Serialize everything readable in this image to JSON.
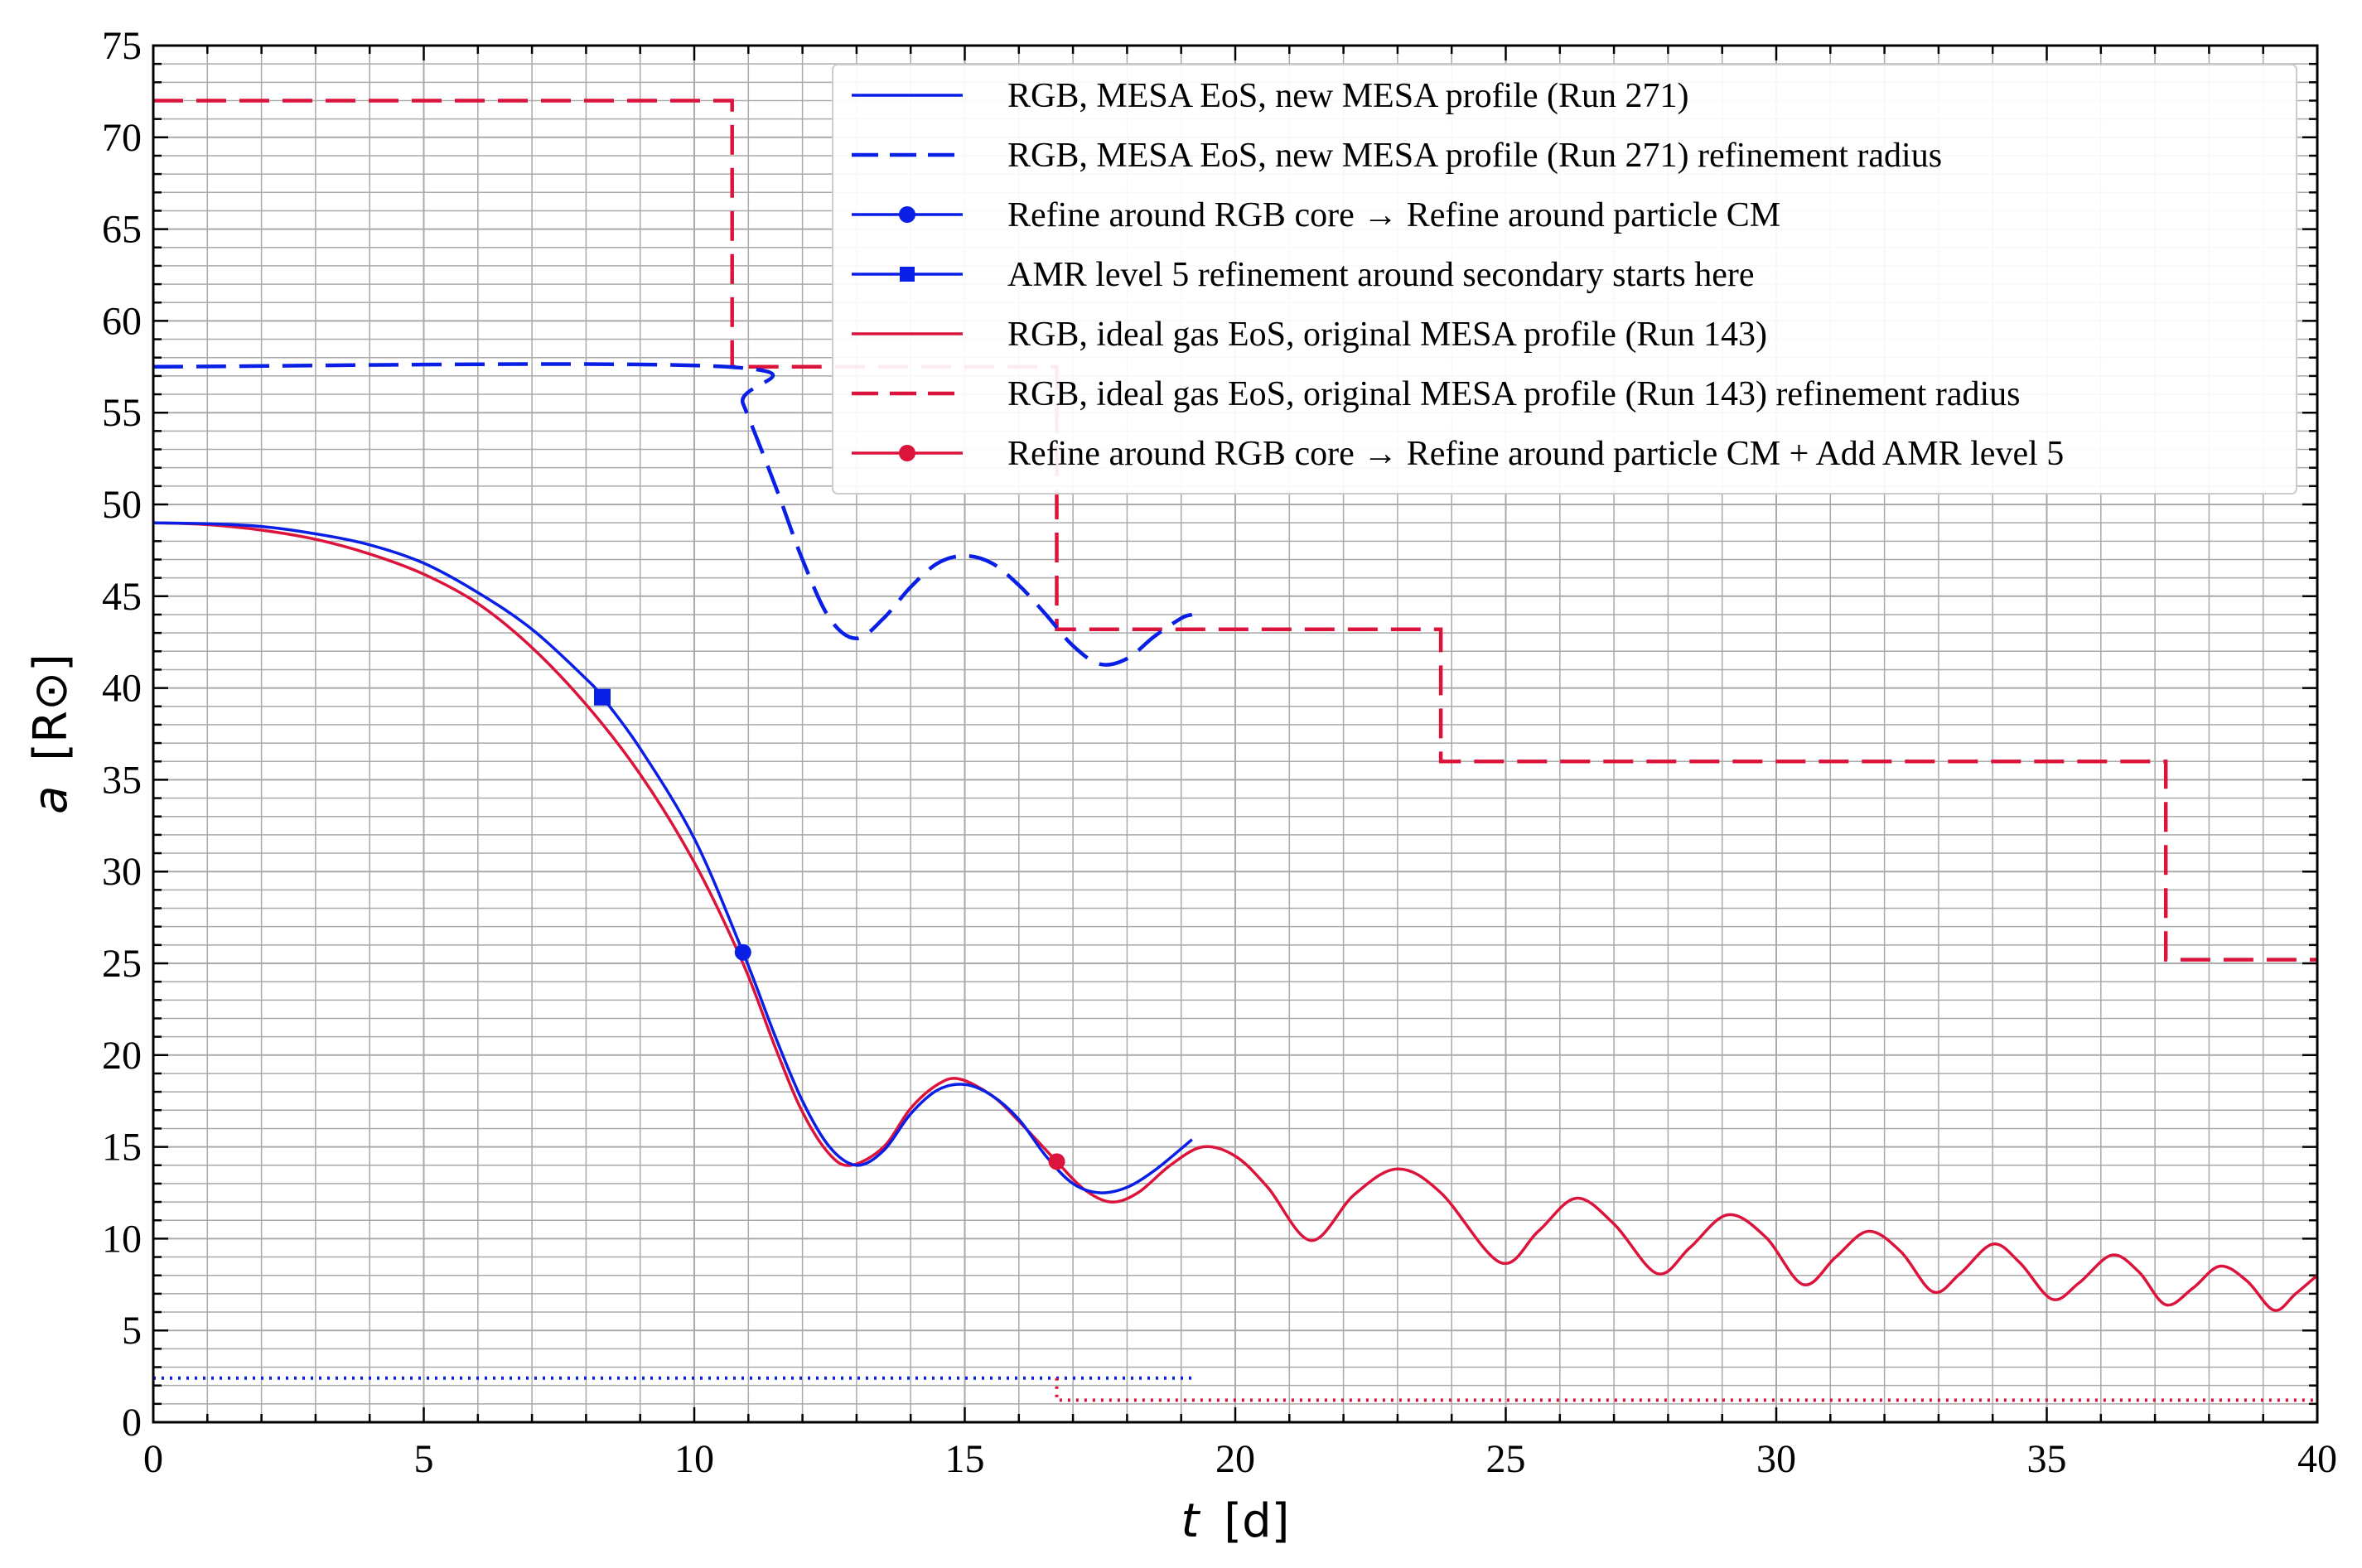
{
  "chart_data": {
    "type": "line",
    "title": "",
    "xlabel": "t [d]",
    "xlabel_italic": "t",
    "xlabel_unit": "[d]",
    "ylabel": "a [R⊙]",
    "ylabel_italic": "a",
    "ylabel_unit": "[R⊙]",
    "xlim": [
      0,
      40
    ],
    "ylim": [
      0,
      75
    ],
    "xticks": [
      0,
      5,
      10,
      15,
      20,
      25,
      30,
      35,
      40
    ],
    "yticks": [
      0,
      5,
      10,
      15,
      20,
      25,
      30,
      35,
      40,
      45,
      50,
      55,
      60,
      65,
      70,
      75
    ],
    "x_tick_labels": [
      "0",
      "5",
      "10",
      "15",
      "20",
      "25",
      "30",
      "35",
      "40"
    ],
    "y_tick_labels": [
      "0",
      "5",
      "10",
      "15",
      "20",
      "25",
      "30",
      "35",
      "40",
      "45",
      "50",
      "55",
      "60",
      "65",
      "70",
      "75"
    ],
    "grid": true,
    "minor_grid": true,
    "legend_position": "top-right",
    "colors": {
      "blue": "#0a1fe6",
      "red": "#dc143c",
      "grid": "#aaaaaa"
    },
    "series": [
      {
        "name": "RGB, MESA EoS, new MESA profile (Run 271)",
        "style": "solid",
        "color": "#0a1fe6",
        "x": [
          0,
          1,
          2,
          3,
          4,
          5,
          6,
          7,
          8,
          8.3,
          9,
          10,
          10.9,
          11.5,
          12,
          12.5,
          13,
          13.5,
          14,
          14.5,
          15,
          15.5,
          16,
          16.5,
          17,
          17.5,
          18,
          18.5,
          19,
          19.2
        ],
        "y": [
          49,
          48.95,
          48.8,
          48.4,
          47.8,
          46.8,
          45.2,
          43.2,
          40.5,
          39.5,
          36.7,
          31.8,
          25.6,
          21,
          17.5,
          15,
          14.0,
          14.8,
          16.8,
          18.1,
          18.4,
          17.8,
          16.5,
          14.5,
          13.0,
          12.5,
          12.8,
          13.7,
          14.9,
          15.4
        ]
      },
      {
        "name": "RGB, MESA EoS, new MESA profile (Run 271) refinement radius",
        "style": "dashed",
        "color": "#0a1fe6",
        "x": [
          0,
          10.6,
          10.9,
          11.5,
          12,
          12.5,
          13,
          13.5,
          14,
          14.5,
          15,
          15.5,
          16,
          16.5,
          17,
          17.5,
          18,
          18.5,
          19,
          19.2
        ],
        "y": [
          57.5,
          57.5,
          55.5,
          51,
          47,
          43.8,
          42.7,
          43.8,
          45.5,
          46.8,
          47.2,
          46.8,
          45.6,
          44,
          42.3,
          41.3,
          41.6,
          42.8,
          43.8,
          44
        ]
      },
      {
        "name": "Refine around RGB core → Refine around particle CM",
        "style": "marker-circle",
        "color": "#0a1fe6",
        "x": [
          10.9
        ],
        "y": [
          25.6
        ]
      },
      {
        "name": "AMR level 5 refinement around secondary starts here",
        "style": "marker-square",
        "color": "#0a1fe6",
        "x": [
          8.3
        ],
        "y": [
          39.5
        ]
      },
      {
        "name": "RGB, ideal gas EoS, original MESA profile (Run 143)",
        "style": "solid",
        "color": "#dc143c",
        "x": [
          0,
          1,
          2,
          3,
          4,
          5,
          6,
          7,
          8,
          9,
          10,
          10.9,
          11.5,
          12,
          12.5,
          12.9,
          13.5,
          14,
          14.5,
          14.9,
          15.5,
          16,
          16.7,
          17.2,
          17.7,
          18.2,
          18.8,
          19.4,
          20,
          20.6,
          21.4,
          22.2,
          23.0,
          23.8,
          24.9,
          25.6,
          26.3,
          27.0,
          27.8,
          28.4,
          29.1,
          29.8,
          30.5,
          31.1,
          31.7,
          32.3,
          32.9,
          33.4,
          34.0,
          34.5,
          35.1,
          35.6,
          36.2,
          36.7,
          37.2,
          37.7,
          38.2,
          38.7,
          39.2,
          39.6,
          40
        ],
        "y": [
          49,
          48.9,
          48.6,
          48.1,
          47.3,
          46.2,
          44.6,
          42.2,
          39.1,
          35.3,
          30.5,
          25,
          20.4,
          16.9,
          14.6,
          14.0,
          15.0,
          17.1,
          18.4,
          18.7,
          17.8,
          16.4,
          14.2,
          12.7,
          12.0,
          12.5,
          14.0,
          15.0,
          14.5,
          12.8,
          9.9,
          12.4,
          13.8,
          12.5,
          8.7,
          10.4,
          12.2,
          10.8,
          8.1,
          9.5,
          11.3,
          10.1,
          7.5,
          9.0,
          10.4,
          9.3,
          7.1,
          8.1,
          9.7,
          8.7,
          6.7,
          7.6,
          9.1,
          8.2,
          6.4,
          7.3,
          8.5,
          7.7,
          6.1,
          7.0,
          8.0
        ]
      },
      {
        "name": "RGB, ideal gas EoS, original MESA profile (Run 143) refinement radius",
        "style": "dashed",
        "color": "#dc143c",
        "x": [
          0,
          10.7,
          10.7,
          16.7,
          16.7,
          23.8,
          23.8,
          37.2,
          37.2,
          40
        ],
        "y": [
          72,
          72,
          57.5,
          57.5,
          43.2,
          43.2,
          36,
          36,
          25.2,
          25.2
        ]
      },
      {
        "name": "Refine around RGB core → Refine around particle CM + Add AMR level 5",
        "style": "marker-circle",
        "color": "#dc143c",
        "x": [
          16.7
        ],
        "y": [
          14.2
        ]
      }
    ],
    "extra_lines": [
      {
        "style": "dotted",
        "color": "#0a1fe6",
        "x": [
          0,
          19.2
        ],
        "y": [
          2.4,
          2.4
        ]
      },
      {
        "style": "dotted",
        "color": "#dc143c",
        "x": [
          16.7,
          16.7,
          40
        ],
        "y": [
          2.4,
          1.2,
          1.2
        ]
      }
    ]
  }
}
